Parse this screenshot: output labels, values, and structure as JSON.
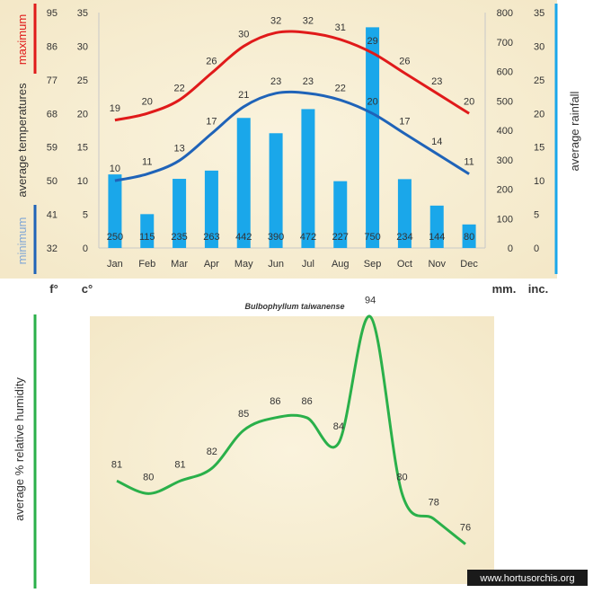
{
  "colors": {
    "max_line": "#e01a1a",
    "min_line": "#1f63b8",
    "rain_bar": "#1aa7ea",
    "humidity_line": "#2ab04a",
    "parchment": "#f7eed4",
    "text": "#333333"
  },
  "chart_data": [
    {
      "type": "bar+line",
      "title": "Bulbophyllum taiwanense",
      "categories": [
        "Jan",
        "Feb",
        "Mar",
        "Apr",
        "May",
        "Jun",
        "Jul",
        "Aug",
        "Sep",
        "Oct",
        "Nov",
        "Dec"
      ],
      "series": [
        {
          "name": "maximum",
          "values": [
            19,
            20,
            22,
            26,
            30,
            32,
            32,
            31,
            29,
            26,
            23,
            20
          ]
        },
        {
          "name": "minimum",
          "values": [
            10,
            11,
            13,
            17,
            21,
            23,
            23,
            22,
            20,
            17,
            14,
            11
          ]
        },
        {
          "name": "average rainfall",
          "values": [
            250,
            115,
            235,
            263,
            442,
            390,
            472,
            227,
            750,
            234,
            144,
            80
          ]
        }
      ],
      "left_axis_label_top": "maximum",
      "left_axis_label_mid": "average temperatures",
      "left_axis_label_bottom": "minimum",
      "right_axis_label": "average rainfall",
      "fahrenheit_ticks": [
        "32",
        "41",
        "50",
        "59",
        "68",
        "77",
        "86",
        "95"
      ],
      "celsius_ticks": [
        "0",
        "5",
        "10",
        "15",
        "20",
        "25",
        "30",
        "35"
      ],
      "mm_ticks": [
        "0",
        "100",
        "200",
        "300",
        "400",
        "500",
        "600",
        "700",
        "800"
      ],
      "inch_ticks": [
        "0",
        "5",
        "10",
        "15",
        "20",
        "25",
        "30",
        "35"
      ],
      "ylim_c": [
        0,
        35
      ],
      "ylim_mm": [
        0,
        800
      ],
      "unit_f": "f°",
      "unit_c": "c°",
      "unit_mm": "mm.",
      "unit_inch": "inc."
    },
    {
      "type": "line",
      "categories": [
        "Jan",
        "Feb",
        "Mar",
        "Apr",
        "May",
        "Jun",
        "Jul",
        "Aug",
        "Sep",
        "Oct",
        "Nov",
        "Dec"
      ],
      "values": [
        81,
        80,
        81,
        82,
        85,
        86,
        86,
        84,
        94,
        80,
        78,
        76
      ],
      "ylabel": "average %  relative humidity",
      "ylim": [
        70,
        100
      ]
    }
  ],
  "watermark": "www.hortusorchis.org"
}
